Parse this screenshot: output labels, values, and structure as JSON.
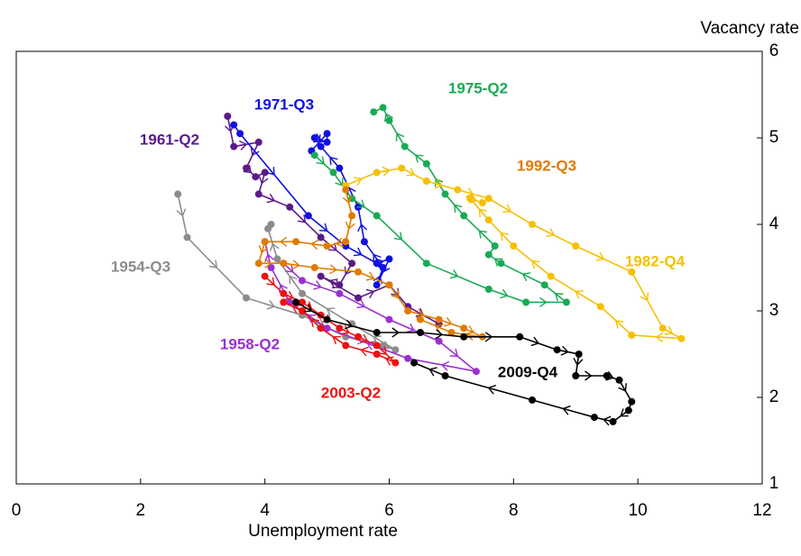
{
  "chart_data": {
    "type": "line",
    "x_label": "Unemployment rate",
    "y_label": "Vacancy rate",
    "xlim": [
      0,
      12
    ],
    "xticks": [
      0,
      2,
      4,
      6,
      8,
      10,
      12
    ],
    "ylim": [
      1,
      6
    ],
    "yticks": [
      1,
      2,
      3,
      4,
      5,
      6
    ],
    "y_axis_side": "right",
    "series": [
      {
        "name": "1954-Q3",
        "color": "#8c8c8c",
        "x": [
          2.6,
          2.75,
          3.7,
          4.6,
          5.3,
          5.9,
          6.1,
          5.4,
          4.6,
          4.2,
          4.05,
          4.1
        ],
        "values": [
          4.35,
          3.85,
          3.15,
          2.95,
          2.7,
          2.6,
          2.55,
          2.85,
          3.2,
          3.6,
          3.95,
          4.0
        ]
      },
      {
        "name": "1958-Q2",
        "color": "#9b30d0",
        "x": [
          4.3,
          4.6,
          5.2,
          6.0,
          6.8,
          7.4,
          6.3,
          5.0,
          4.4,
          4.1,
          4.0
        ],
        "values": [
          3.55,
          3.35,
          3.2,
          2.9,
          2.65,
          2.3,
          2.45,
          2.8,
          3.1,
          3.5,
          3.8
        ]
      },
      {
        "name": "1961-Q2",
        "color": "#5b1a8a",
        "x": [
          3.4,
          3.5,
          3.9,
          3.7,
          3.85,
          4.0,
          3.9,
          4.4,
          4.9,
          5.4,
          5.2,
          4.9,
          5.5,
          6.0,
          6.3,
          6.8
        ],
        "values": [
          5.25,
          4.9,
          4.95,
          4.65,
          4.55,
          4.6,
          4.35,
          4.2,
          3.85,
          3.55,
          3.3,
          3.4,
          3.15,
          3.3,
          3.05,
          2.85
        ]
      },
      {
        "name": "1971-Q3",
        "color": "#1010e0",
        "x": [
          3.5,
          3.6,
          4.7,
          5.3,
          5.8,
          6.0,
          5.8,
          5.9,
          5.6,
          5.5,
          5.2,
          4.9,
          4.8,
          5.0,
          5.0,
          4.75
        ],
        "values": [
          5.15,
          5.05,
          4.1,
          3.75,
          3.55,
          3.6,
          3.3,
          3.5,
          3.8,
          4.2,
          4.65,
          4.9,
          5.0,
          4.95,
          5.05,
          4.85
        ]
      },
      {
        "name": "1975-Q2",
        "color": "#1aaa55",
        "x": [
          4.8,
          5.1,
          5.4,
          5.8,
          6.6,
          7.6,
          8.2,
          8.85,
          8.5,
          7.8,
          7.6,
          7.7,
          7.2,
          6.9,
          6.6,
          6.25,
          6.0,
          5.9,
          5.75
        ],
        "values": [
          4.8,
          4.6,
          4.3,
          4.1,
          3.55,
          3.25,
          3.1,
          3.1,
          3.3,
          3.55,
          3.65,
          3.75,
          4.1,
          4.35,
          4.7,
          4.9,
          5.2,
          5.35,
          5.3
        ]
      },
      {
        "name": "1982-Q4",
        "color": "#f5c000",
        "x": [
          5.3,
          5.8,
          6.2,
          6.6,
          7.1,
          7.6,
          8.3,
          9.0,
          9.9,
          10.4,
          10.7,
          9.9,
          9.4,
          8.6,
          8.0,
          7.6,
          7.3,
          7.5
        ],
        "values": [
          4.45,
          4.6,
          4.65,
          4.5,
          4.4,
          4.3,
          4.0,
          3.75,
          3.45,
          2.8,
          2.68,
          2.72,
          3.05,
          3.4,
          3.75,
          4.05,
          4.3,
          4.25
        ]
      },
      {
        "name": "1992-Q3",
        "color": "#e07b00",
        "x": [
          5.3,
          5.4,
          5.3,
          5.0,
          4.5,
          4.0,
          3.9,
          4.3,
          4.8,
          5.5,
          6.0,
          6.3,
          6.8,
          7.2,
          7.5,
          7.0,
          6.5
        ],
        "values": [
          4.4,
          4.1,
          3.8,
          3.75,
          3.8,
          3.8,
          3.55,
          3.55,
          3.5,
          3.45,
          3.3,
          3.0,
          2.9,
          2.8,
          2.7,
          2.75,
          2.9
        ]
      },
      {
        "name": "2003-Q2",
        "color": "#ee1111",
        "x": [
          4.0,
          4.3,
          4.6,
          4.9,
          5.2,
          5.5,
          5.8,
          6.1,
          5.8,
          5.3,
          4.9,
          4.6,
          4.3
        ],
        "values": [
          3.4,
          3.2,
          3.1,
          2.95,
          2.8,
          2.7,
          2.6,
          2.4,
          2.5,
          2.6,
          2.8,
          3.0,
          3.1
        ]
      },
      {
        "name": "2009-Q4",
        "color": "#000000",
        "x": [
          4.5,
          5.0,
          5.8,
          6.5,
          7.2,
          8.1,
          8.7,
          9.05,
          9.0,
          9.5,
          9.7,
          9.9,
          9.85,
          9.6,
          9.3,
          8.3,
          6.9,
          6.4
        ],
        "values": [
          3.1,
          2.9,
          2.75,
          2.75,
          2.7,
          2.7,
          2.55,
          2.5,
          2.25,
          2.25,
          2.2,
          1.95,
          1.85,
          1.72,
          1.77,
          1.97,
          2.25,
          2.4
        ]
      }
    ]
  }
}
